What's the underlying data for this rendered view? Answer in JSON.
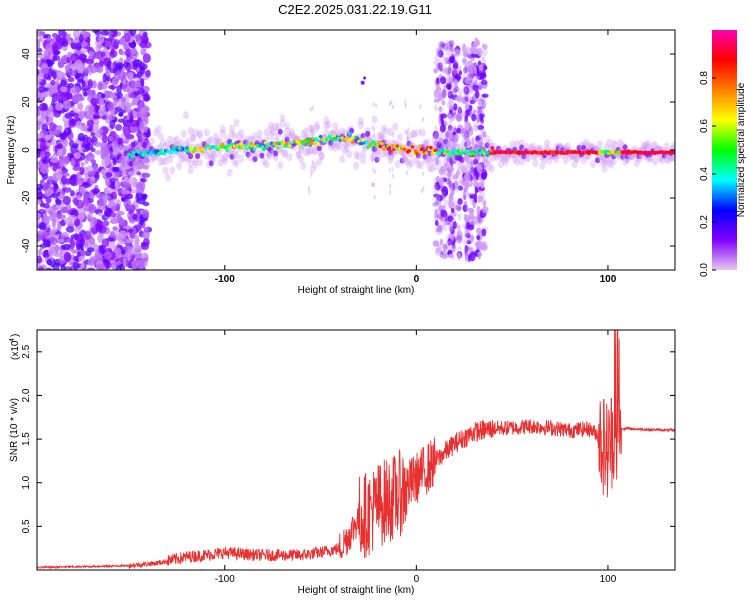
{
  "title": "C2E2.2025.031.22.19.G11",
  "chart_data": [
    {
      "type": "heatmap",
      "xlabel": "Height of straight line (km)",
      "ylabel": "Frequency (Hz)",
      "xlim": [
        -198,
        135
      ],
      "ylim": [
        -50,
        50
      ],
      "xticks": [
        -100,
        0,
        100
      ],
      "yticks": [
        -40,
        -20,
        0,
        20,
        40
      ],
      "colorbar": {
        "label": "Normalized spectral amplitude",
        "range": [
          0.0,
          1.0
        ],
        "ticks": [
          0.0,
          0.2,
          0.4,
          0.6,
          0.8
        ],
        "tick_labels": [
          "0.0",
          "0.2",
          "0.4",
          "0.6",
          "0.8"
        ],
        "colors": [
          "#e8c8f0",
          "#8000ff",
          "#0000ff",
          "#00ffff",
          "#00ff00",
          "#ffff00",
          "#ff8000",
          "#ff0000",
          "#ff00b0"
        ]
      },
      "ridge": {
        "x": [
          -150,
          -120,
          -100,
          -80,
          -60,
          -40,
          -30,
          -20,
          -10,
          0,
          20,
          40,
          60,
          80,
          100,
          135
        ],
        "frequency": [
          -2,
          0,
          1,
          2,
          3,
          5,
          4,
          2,
          1,
          0,
          -1,
          -1,
          -1,
          -1,
          -1,
          -1
        ]
      }
    },
    {
      "type": "line",
      "xlabel": "Height of straight line (km)",
      "ylabel": "SNR (10 * v/v)",
      "y_multiplier_label": "(x10",
      "y_multiplier_exp": "4",
      "y_multiplier_close": ")",
      "xlim": [
        -198,
        135
      ],
      "ylim": [
        0.0,
        2.75
      ],
      "xticks": [
        -100,
        0,
        100
      ],
      "yticks": [
        0.5,
        1.0,
        1.5,
        2.0,
        2.5
      ],
      "ytick_labels": [
        "0.5",
        "1.0",
        "1.5",
        "2.0",
        "2.5"
      ],
      "color": "#e83030",
      "x": [
        -198,
        -170,
        -150,
        -135,
        -120,
        -110,
        -100,
        -90,
        -80,
        -70,
        -60,
        -50,
        -40,
        -35,
        -30,
        -25,
        -20,
        -15,
        -10,
        -5,
        0,
        10,
        20,
        30,
        40,
        50,
        60,
        70,
        80,
        90,
        95,
        100,
        103,
        106,
        110,
        120,
        135
      ],
      "values": [
        0.03,
        0.04,
        0.05,
        0.08,
        0.15,
        0.17,
        0.2,
        0.18,
        0.17,
        0.17,
        0.17,
        0.2,
        0.25,
        0.4,
        0.6,
        0.65,
        0.75,
        0.8,
        0.85,
        0.95,
        1.05,
        1.25,
        1.45,
        1.58,
        1.62,
        1.63,
        1.65,
        1.63,
        1.6,
        1.62,
        1.55,
        1.35,
        1.6,
        1.62,
        1.62,
        1.61,
        1.6
      ]
    }
  ]
}
